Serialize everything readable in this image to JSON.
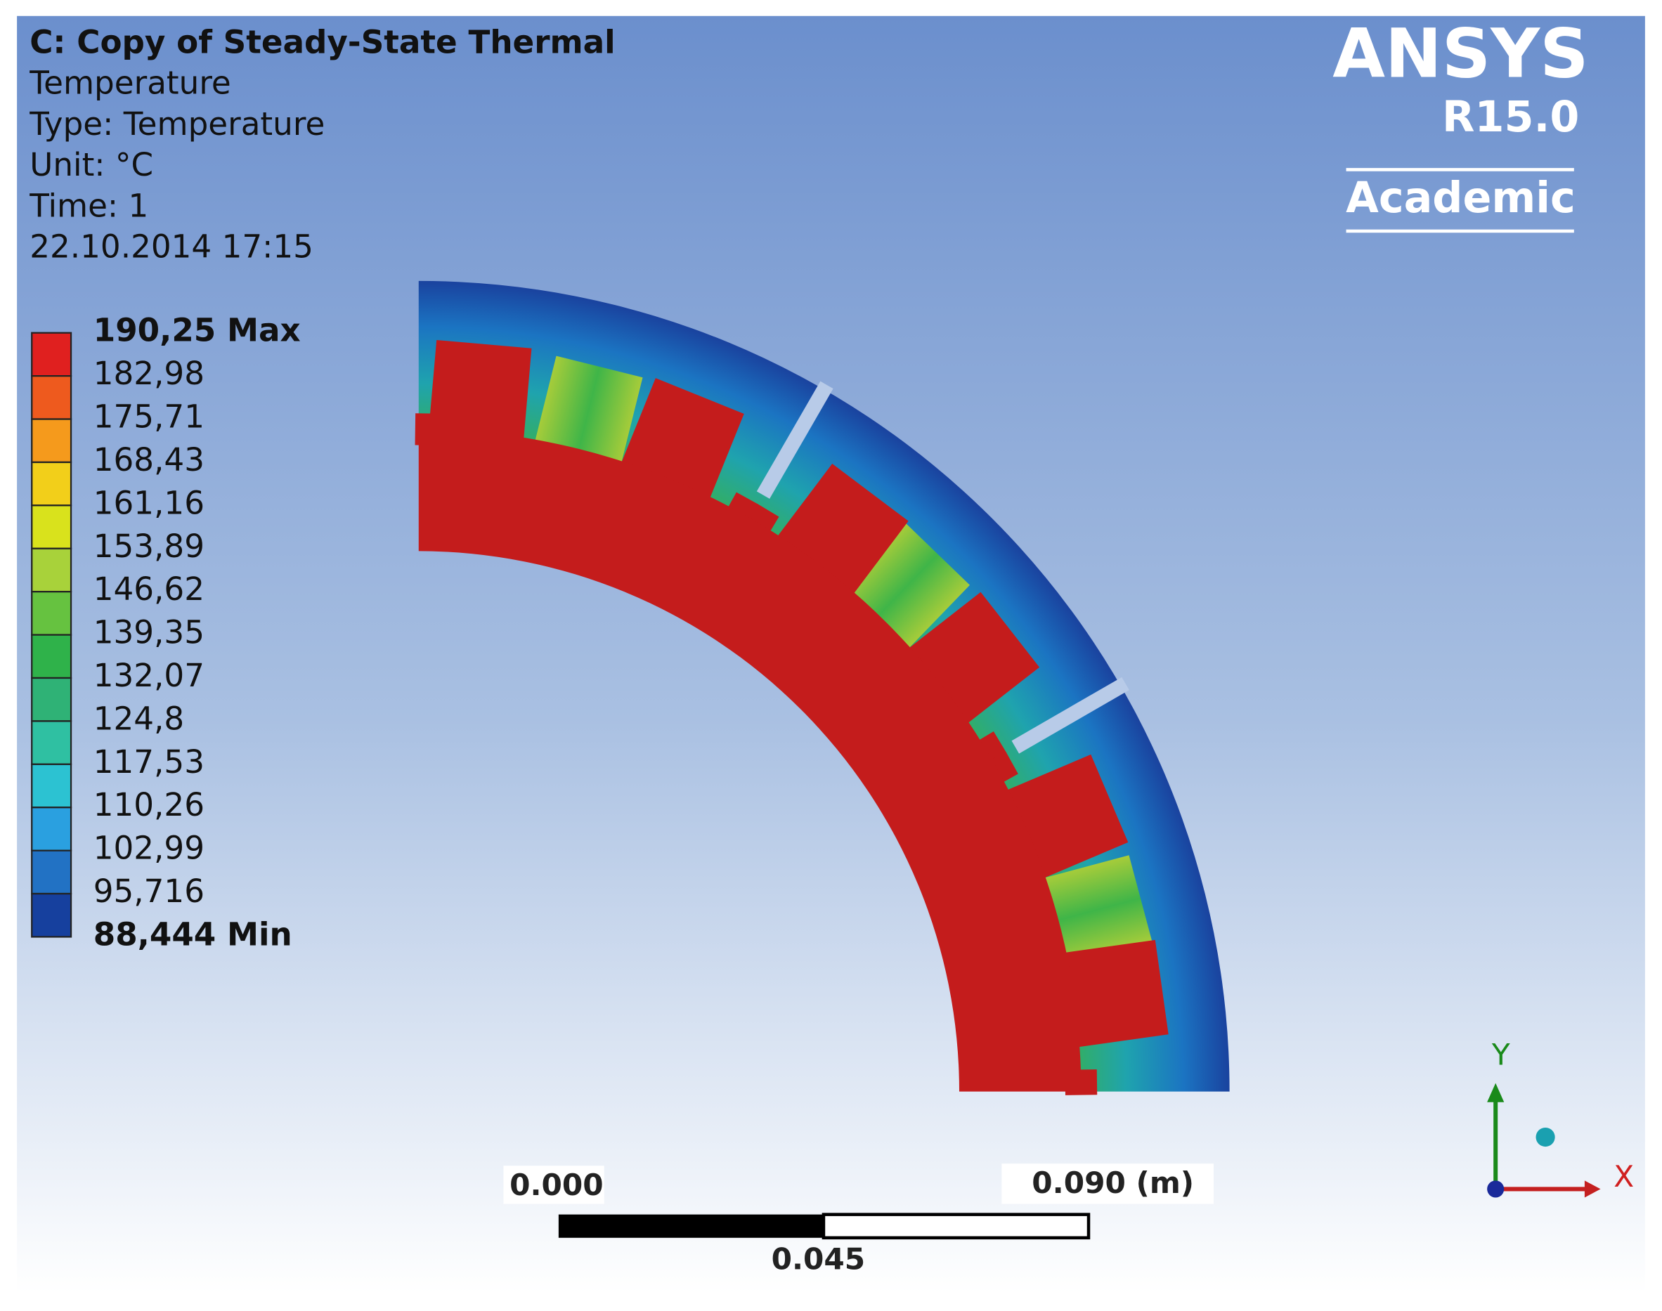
{
  "header": {
    "lines": [
      "C: Copy of Steady-State Thermal",
      "Temperature",
      "Type: Temperature",
      "Unit: °C",
      "Time: 1",
      "22.10.2014 17:15"
    ]
  },
  "logo": {
    "name": "ANSYS",
    "version": "R15.0",
    "edition": "Academic"
  },
  "legend": {
    "labels": [
      "190,25 Max",
      "182,98",
      "175,71",
      "168,43",
      "161,16",
      "153,89",
      "146,62",
      "139,35",
      "132,07",
      "124,8",
      "117,53",
      "110,26",
      "102,99",
      "95,716",
      "88,444 Min"
    ],
    "colors": [
      "#e0201f",
      "#ee5a1e",
      "#f59a1c",
      "#f2cf1a",
      "#d9e21c",
      "#a8d23a",
      "#66c240",
      "#2fb24a",
      "#2fb276",
      "#2fc0a2",
      "#2cc2d2",
      "#2aa0e0",
      "#2272c4",
      "#16409e"
    ]
  },
  "scale_bar": {
    "start": "0.000",
    "end": "0.090 (m)",
    "middle": "0.045"
  },
  "triad": {
    "y": "Y",
    "x": "X"
  }
}
